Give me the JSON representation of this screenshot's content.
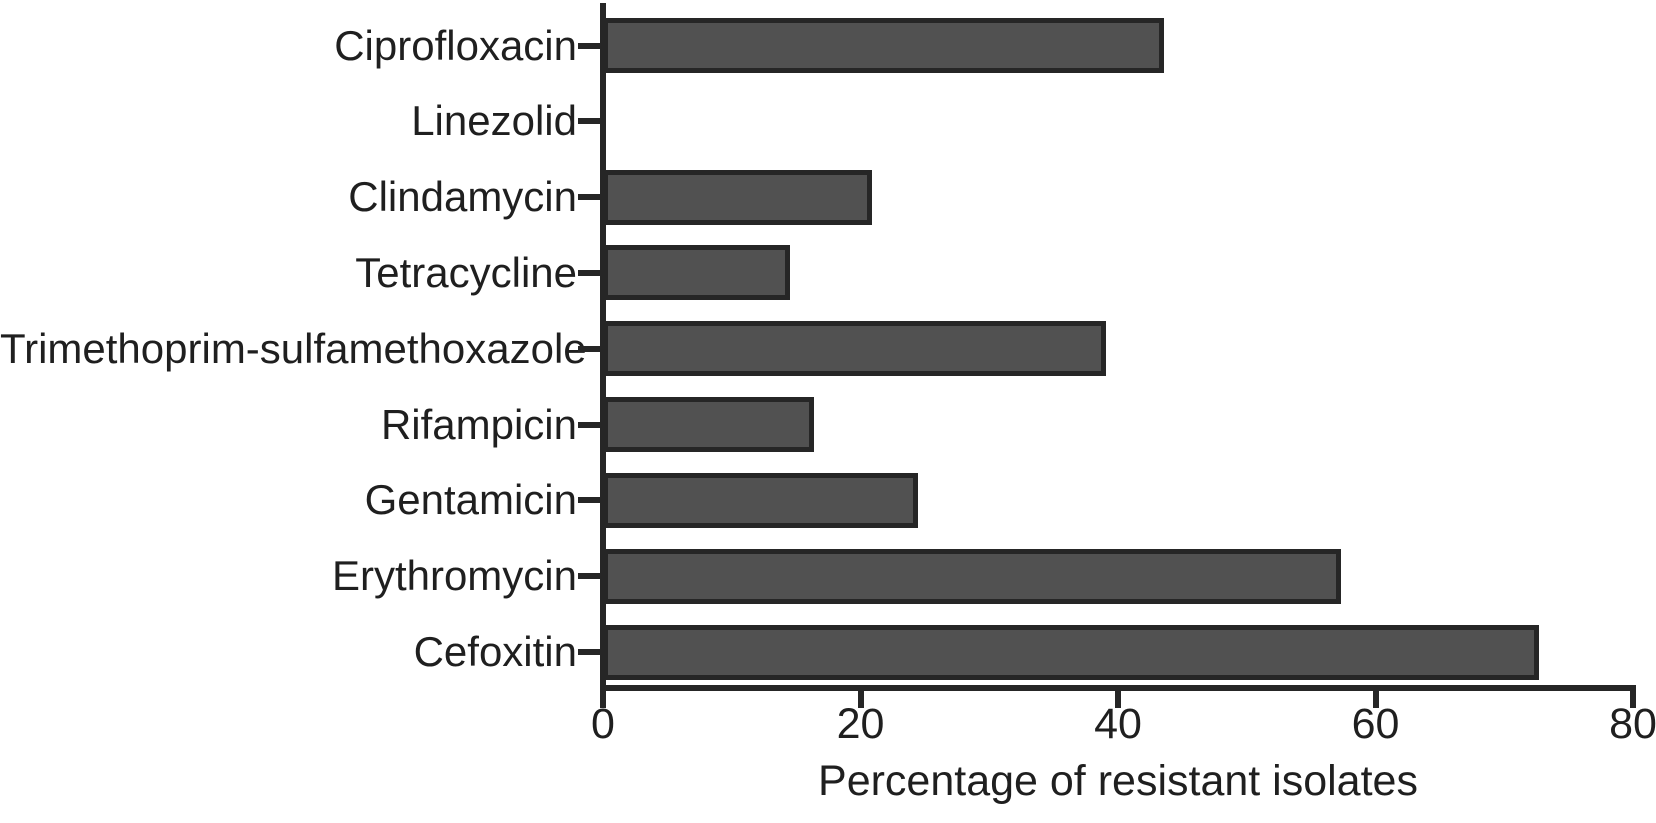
{
  "chart_data": {
    "type": "bar",
    "orientation": "horizontal",
    "title": "",
    "xlabel": "Percentage of resistant isolates",
    "ylabel": "",
    "categories": [
      "Ciprofloxacin",
      "Linezolid",
      "Clindamycin",
      "Tetracycline",
      "Trimethoprim-sulfamethoxazole",
      "Rifampicin",
      "Gentamicin",
      "Erythromycin",
      "Cefoxitin"
    ],
    "values": [
      43.6,
      0,
      20.9,
      14.5,
      39.1,
      16.4,
      24.5,
      57.3,
      72.7
    ],
    "xlim": [
      0,
      80
    ],
    "xticks": [
      0,
      20,
      40,
      60,
      80
    ],
    "grid": "off",
    "legend": "none",
    "bar_fill_color": "#515151",
    "bar_stroke_color": "#262626",
    "axis_color": "#262626",
    "text_color": "#1f1f1f",
    "background_color": "#ffffff"
  }
}
